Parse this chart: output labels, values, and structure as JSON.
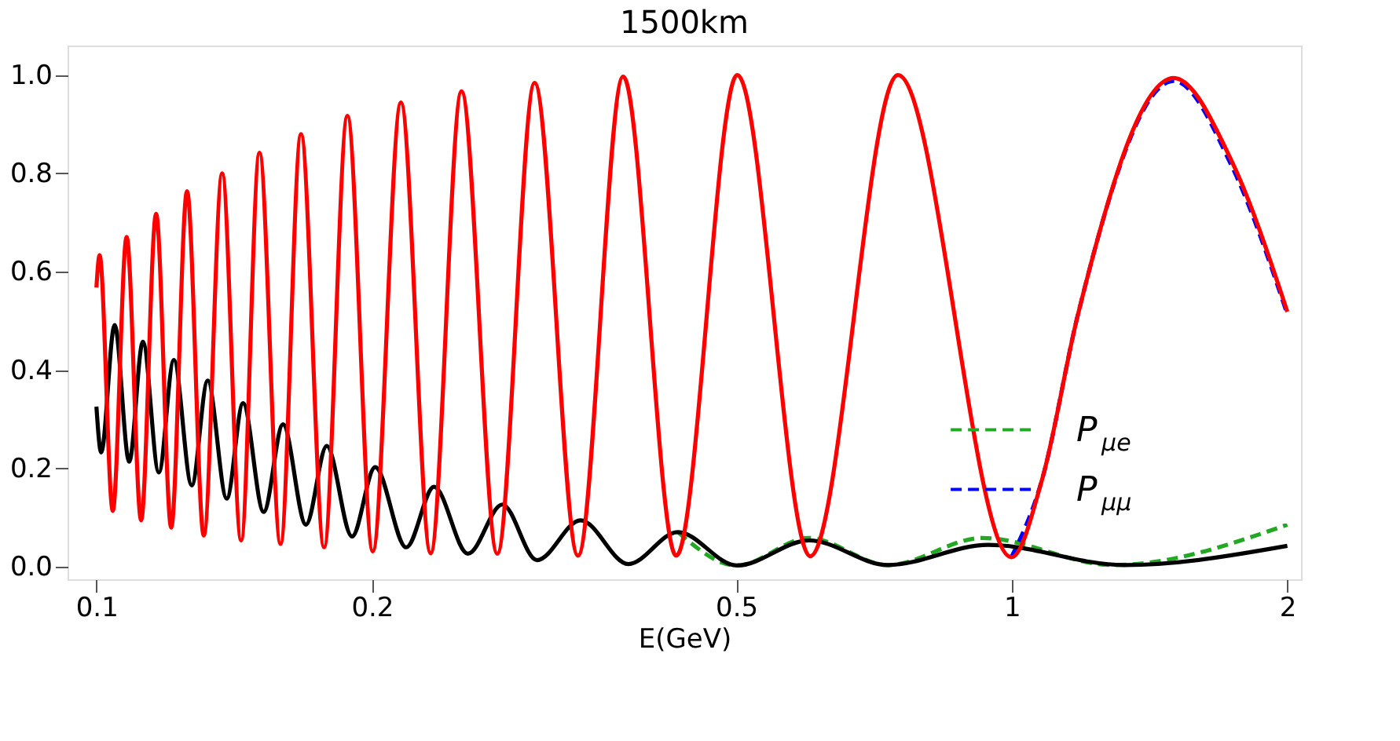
{
  "chart_data": {
    "type": "line",
    "title": "1500km",
    "xlabel": "E(GeV)",
    "log": "x",
    "grid": false,
    "legend": "bottom right",
    "marker": "none",
    "xlim": [
      0.093,
      2.07
    ],
    "xticks": [
      0.1,
      0.2,
      0.5,
      1,
      2
    ],
    "ylim": [
      -0.025,
      1.06
    ],
    "yticks": [
      {
        "value": 0,
        "label": "0.0"
      },
      {
        "value": 0.2,
        "label": "0.2"
      },
      {
        "value": 0.4,
        "label": "0.4"
      },
      {
        "value": 0.6,
        "label": "0.6"
      },
      {
        "value": 0.8,
        "label": "0.8"
      },
      {
        "value": 1,
        "label": "1.0"
      }
    ],
    "series": [
      {
        "name": "P$_{μe}$",
        "color": "#22a822",
        "line_style": "dashed",
        "x": [
          0.4317,
          0.5008,
          0.6,
          0.7322,
          0.929,
          1.29,
          2.0
        ],
        "values": [
          0.071,
          0.003,
          0.059,
          0.004,
          0.059,
          0.004,
          0.086
        ]
      },
      {
        "name": "P$_{μμ}$",
        "color": "#0000ff",
        "line_style": "dashed",
        "x": [
          0.999,
          1.08,
          1.18,
          1.503,
          1.739,
          2.0
        ],
        "values": [
          0.02,
          0.18,
          0.51,
          0.988,
          0.815,
          0.514
        ]
      },
      {
        "color": "#000000",
        "line_style": "solid",
        "x": [
          0.1,
          0.1012,
          0.1047,
          0.1086,
          0.1124,
          0.117,
          0.1215,
          0.1271,
          0.1323,
          0.1388,
          0.1446,
          0.1523,
          0.1599,
          0.1694,
          0.1785,
          0.1902,
          0.2016,
          0.218,
          0.2338,
          0.2546,
          0.2776,
          0.3029,
          0.338,
          0.3812,
          0.4317,
          0.5008,
          0.6007,
          0.7322,
          0.9425,
          1.326,
          2.0
        ],
        "values": [
          0.326,
          0.233,
          0.492,
          0.214,
          0.458,
          0.192,
          0.421,
          0.166,
          0.379,
          0.139,
          0.333,
          0.112,
          0.29,
          0.086,
          0.246,
          0.062,
          0.203,
          0.04,
          0.163,
          0.027,
          0.127,
          0.014,
          0.095,
          0.006,
          0.071,
          0.003,
          0.054,
          0.004,
          0.045,
          0.004,
          0.043
        ]
      },
      {
        "color": "#ff0000",
        "line_style": "solid",
        "x": [
          0.1,
          0.1008,
          0.1042,
          0.1079,
          0.1119,
          0.1162,
          0.1207,
          0.1256,
          0.131,
          0.1372,
          0.1439,
          0.1507,
          0.1589,
          0.1673,
          0.1773,
          0.188,
          0.2004,
          0.2151,
          0.2318,
          0.2505,
          0.2741,
          0.3011,
          0.3358,
          0.3762,
          0.4299,
          0.5014,
          0.6023,
          0.751,
          0.999,
          1.08,
          1.18,
          1.503,
          1.739,
          2.0
        ],
        "values": [
          0.568,
          0.634,
          0.114,
          0.671,
          0.095,
          0.718,
          0.08,
          0.764,
          0.064,
          0.8,
          0.054,
          0.842,
          0.047,
          0.88,
          0.04,
          0.917,
          0.032,
          0.944,
          0.028,
          0.967,
          0.027,
          0.984,
          0.023,
          0.997,
          0.023,
          1.0,
          0.022,
          1.0,
          0.02,
          0.18,
          0.51,
          0.994,
          0.825,
          0.519
        ]
      }
    ]
  }
}
